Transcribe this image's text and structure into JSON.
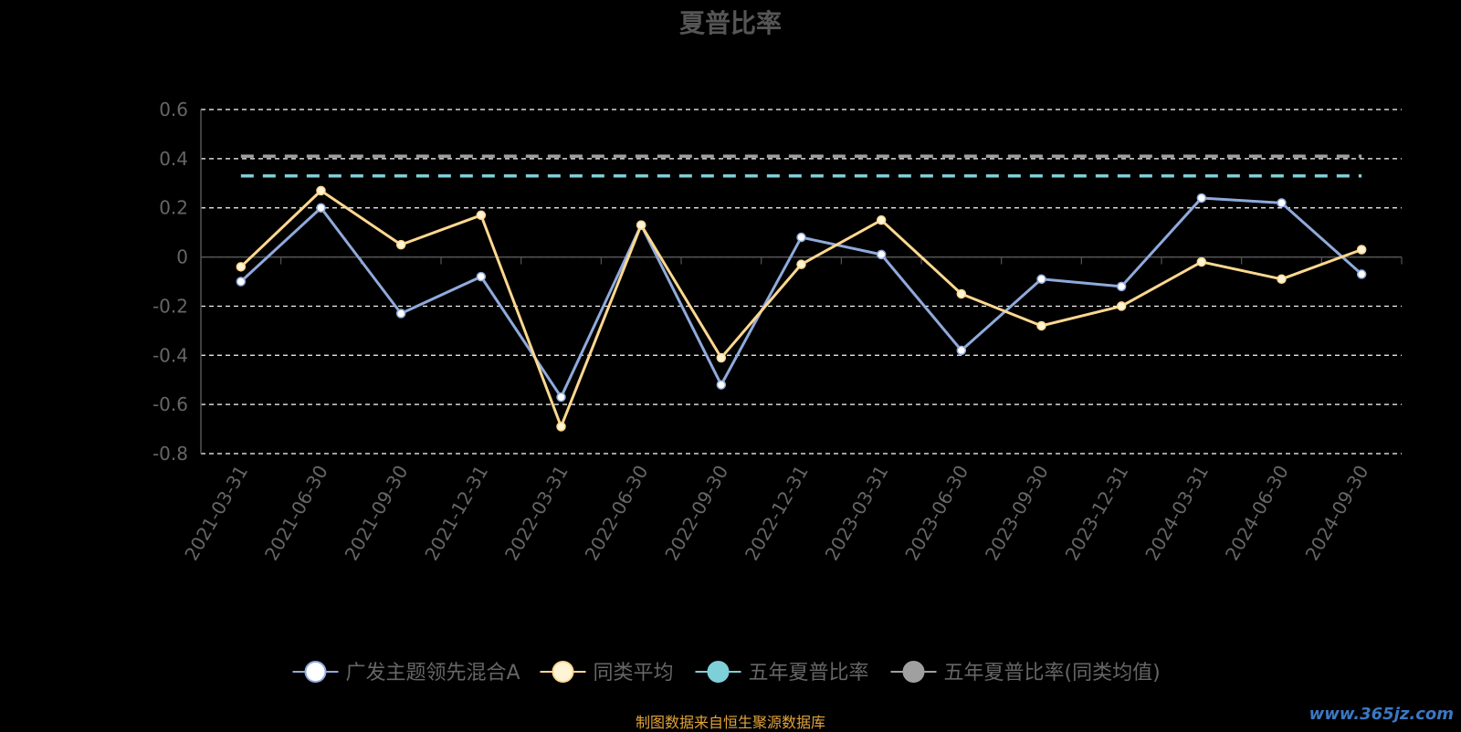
{
  "chart_data": {
    "type": "line",
    "title": "夏普比率",
    "x": [
      "2021-03-31",
      "2021-06-30",
      "2021-09-30",
      "2021-12-31",
      "2022-03-31",
      "2022-06-30",
      "2022-09-30",
      "2022-12-31",
      "2023-03-31",
      "2023-06-30",
      "2023-09-30",
      "2023-12-31",
      "2024-03-31",
      "2024-06-30",
      "2024-09-30"
    ],
    "ylim": [
      -0.8,
      0.6
    ],
    "yticks": [
      0.6,
      0.4,
      0.2,
      0,
      -0.2,
      -0.4,
      -0.6,
      -0.8
    ],
    "ytick_labels": [
      "0.6",
      "0.4",
      "0.2",
      "0",
      "-0.2",
      "-0.4",
      "-0.6",
      "-0.8"
    ],
    "grid": true,
    "legend_position": "bottom",
    "series": [
      {
        "name": "广发主题领先混合A",
        "color": "#8faadc",
        "marker_color": "#ffffff",
        "values": [
          -0.1,
          0.2,
          -0.23,
          -0.08,
          -0.57,
          0.13,
          -0.52,
          0.08,
          0.01,
          -0.38,
          -0.09,
          -0.12,
          0.24,
          0.22,
          -0.07
        ]
      },
      {
        "name": "同类平均",
        "color": "#ffd890",
        "marker_color": "#fff5d6",
        "values": [
          -0.04,
          0.27,
          0.05,
          0.17,
          -0.69,
          0.13,
          -0.41,
          -0.03,
          0.15,
          -0.15,
          -0.28,
          -0.2,
          -0.02,
          -0.09,
          0.03
        ]
      },
      {
        "name": "五年夏普比率",
        "color": "#7ed0d8",
        "marker_color": "#7ed0d8",
        "dashed": true,
        "values": [
          0.33,
          0.33,
          0.33,
          0.33,
          0.33,
          0.33,
          0.33,
          0.33,
          0.33,
          0.33,
          0.33,
          0.33,
          0.33,
          0.33,
          0.33
        ]
      },
      {
        "name": "五年夏普比率(同类均值)",
        "color": "#a0a0a0",
        "marker_color": "#a0a0a0",
        "dashed": true,
        "values": [
          0.41,
          0.41,
          0.41,
          0.41,
          0.41,
          0.41,
          0.41,
          0.41,
          0.41,
          0.41,
          0.41,
          0.41,
          0.41,
          0.41,
          0.41
        ]
      }
    ]
  },
  "footer": {
    "source_note": "制图数据来自恒生聚源数据库",
    "watermark": "www.365jz.com"
  }
}
